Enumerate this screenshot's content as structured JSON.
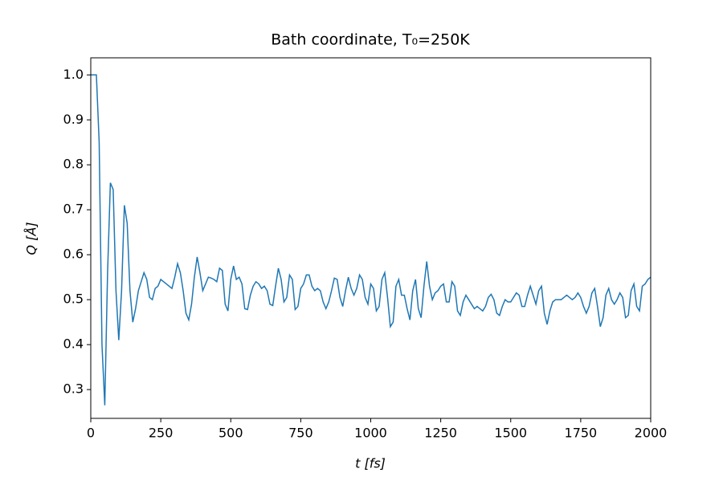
{
  "chart_data": {
    "type": "line",
    "title": "Bath coordinate, T₀=250K",
    "x_label": "t [fs]",
    "y_label": "Q [Å]",
    "xlim": [
      0,
      2000
    ],
    "xticks": [
      0,
      250,
      500,
      750,
      1000,
      1250,
      1500,
      1750,
      2000
    ],
    "ylim": [
      0.236,
      1.038
    ],
    "yticks": [
      0.3,
      0.4,
      0.5,
      0.6,
      0.7,
      0.8,
      0.9,
      {
        "value": 1,
        "label": "1.0"
      }
    ],
    "series": [
      {
        "color": "#1f77b4",
        "x": [
          0,
          10,
          20,
          30,
          40,
          50,
          60,
          70,
          80,
          90,
          100,
          110,
          120,
          130,
          140,
          150,
          160,
          170,
          180,
          190,
          200,
          210,
          220,
          230,
          240,
          250,
          260,
          270,
          280,
          290,
          300,
          310,
          320,
          330,
          340,
          350,
          360,
          370,
          380,
          390,
          400,
          410,
          420,
          430,
          440,
          450,
          460,
          470,
          480,
          490,
          500,
          510,
          520,
          530,
          540,
          550,
          560,
          570,
          580,
          590,
          600,
          610,
          620,
          630,
          640,
          650,
          660,
          670,
          680,
          690,
          700,
          710,
          720,
          730,
          740,
          750,
          760,
          770,
          780,
          790,
          800,
          810,
          820,
          830,
          840,
          850,
          860,
          870,
          880,
          890,
          900,
          910,
          920,
          930,
          940,
          950,
          960,
          970,
          980,
          990,
          1000,
          1010,
          1020,
          1030,
          1040,
          1050,
          1060,
          1070,
          1080,
          1090,
          1100,
          1110,
          1120,
          1130,
          1140,
          1150,
          1160,
          1170,
          1180,
          1190,
          1200,
          1210,
          1220,
          1230,
          1240,
          1250,
          1260,
          1270,
          1280,
          1290,
          1300,
          1310,
          1320,
          1330,
          1340,
          1350,
          1360,
          1370,
          1380,
          1390,
          1400,
          1410,
          1420,
          1430,
          1440,
          1450,
          1460,
          1470,
          1480,
          1490,
          1500,
          1510,
          1520,
          1530,
          1540,
          1550,
          1560,
          1570,
          1580,
          1590,
          1600,
          1610,
          1620,
          1630,
          1640,
          1650,
          1660,
          1670,
          1680,
          1690,
          1700,
          1710,
          1720,
          1730,
          1740,
          1750,
          1760,
          1770,
          1780,
          1790,
          1800,
          1810,
          1820,
          1830,
          1840,
          1850,
          1860,
          1870,
          1880,
          1890,
          1900,
          1910,
          1920,
          1930,
          1940,
          1950,
          1960,
          1970,
          1980,
          1990,
          2000
        ],
        "values": [
          1.0,
          1.0,
          1.0,
          0.85,
          0.4,
          0.265,
          0.56,
          0.76,
          0.745,
          0.52,
          0.41,
          0.52,
          0.71,
          0.67,
          0.52,
          0.45,
          0.48,
          0.52,
          0.54,
          0.56,
          0.545,
          0.505,
          0.5,
          0.525,
          0.53,
          0.545,
          0.54,
          0.535,
          0.53,
          0.525,
          0.55,
          0.58,
          0.56,
          0.52,
          0.47,
          0.455,
          0.49,
          0.55,
          0.595,
          0.56,
          0.52,
          0.535,
          0.55,
          0.548,
          0.545,
          0.54,
          0.57,
          0.565,
          0.49,
          0.475,
          0.545,
          0.575,
          0.545,
          0.55,
          0.535,
          0.48,
          0.478,
          0.51,
          0.53,
          0.54,
          0.535,
          0.525,
          0.53,
          0.52,
          0.49,
          0.487,
          0.53,
          0.57,
          0.545,
          0.495,
          0.505,
          0.555,
          0.545,
          0.478,
          0.485,
          0.525,
          0.535,
          0.555,
          0.555,
          0.53,
          0.52,
          0.525,
          0.52,
          0.495,
          0.48,
          0.495,
          0.52,
          0.548,
          0.545,
          0.505,
          0.485,
          0.52,
          0.55,
          0.525,
          0.51,
          0.525,
          0.555,
          0.545,
          0.505,
          0.49,
          0.535,
          0.525,
          0.475,
          0.485,
          0.545,
          0.56,
          0.505,
          0.44,
          0.45,
          0.53,
          0.545,
          0.51,
          0.51,
          0.48,
          0.455,
          0.52,
          0.545,
          0.48,
          0.46,
          0.53,
          0.585,
          0.53,
          0.5,
          0.515,
          0.52,
          0.53,
          0.535,
          0.495,
          0.495,
          0.54,
          0.53,
          0.475,
          0.465,
          0.495,
          0.51,
          0.5,
          0.49,
          0.48,
          0.485,
          0.48,
          0.475,
          0.485,
          0.505,
          0.512,
          0.5,
          0.47,
          0.465,
          0.485,
          0.5,
          0.495,
          0.495,
          0.505,
          0.515,
          0.51,
          0.485,
          0.485,
          0.51,
          0.53,
          0.51,
          0.49,
          0.52,
          0.53,
          0.47,
          0.445,
          0.475,
          0.495,
          0.5,
          0.5,
          0.5,
          0.505,
          0.51,
          0.505,
          0.5,
          0.505,
          0.515,
          0.505,
          0.485,
          0.47,
          0.485,
          0.515,
          0.525,
          0.485,
          0.44,
          0.46,
          0.51,
          0.525,
          0.5,
          0.49,
          0.5,
          0.515,
          0.505,
          0.46,
          0.465,
          0.52,
          0.535,
          0.485,
          0.475,
          0.53,
          0.535,
          0.545,
          0.55
        ]
      }
    ]
  }
}
